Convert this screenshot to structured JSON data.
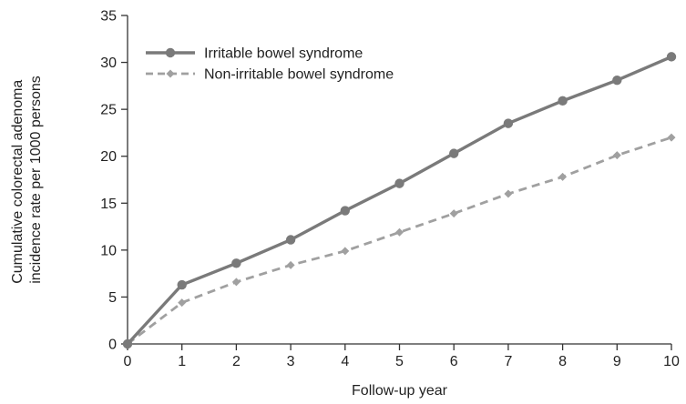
{
  "chart_data": {
    "type": "line",
    "xlabel": "Follow-up year",
    "ylabel_lines": [
      "Cumulative colorectal adenoma",
      "incidence rate per 1000 persons"
    ],
    "x": [
      0,
      1,
      2,
      3,
      4,
      5,
      6,
      7,
      8,
      9,
      10
    ],
    "xlim": [
      0,
      10
    ],
    "ylim": [
      0,
      35
    ],
    "yticks": [
      0,
      5,
      10,
      15,
      20,
      25,
      30,
      35
    ],
    "xticks": [
      0,
      1,
      2,
      3,
      4,
      5,
      6,
      7,
      8,
      9,
      10
    ],
    "grid": false,
    "legend_position": "top-left",
    "series": [
      {
        "name": "Irritable bowel syndrome",
        "values": [
          0,
          6.3,
          8.6,
          11.1,
          14.2,
          17.1,
          20.3,
          23.5,
          25.9,
          28.1,
          30.6
        ],
        "color": "#7a7a7a",
        "line_style": "solid",
        "marker": "circle"
      },
      {
        "name": "Non-irritable bowel syndrome",
        "values": [
          0,
          4.4,
          6.6,
          8.4,
          9.9,
          11.9,
          13.9,
          16.0,
          17.8,
          20.1,
          22.0
        ],
        "color": "#a0a0a0",
        "line_style": "dashed",
        "marker": "diamond"
      }
    ]
  }
}
